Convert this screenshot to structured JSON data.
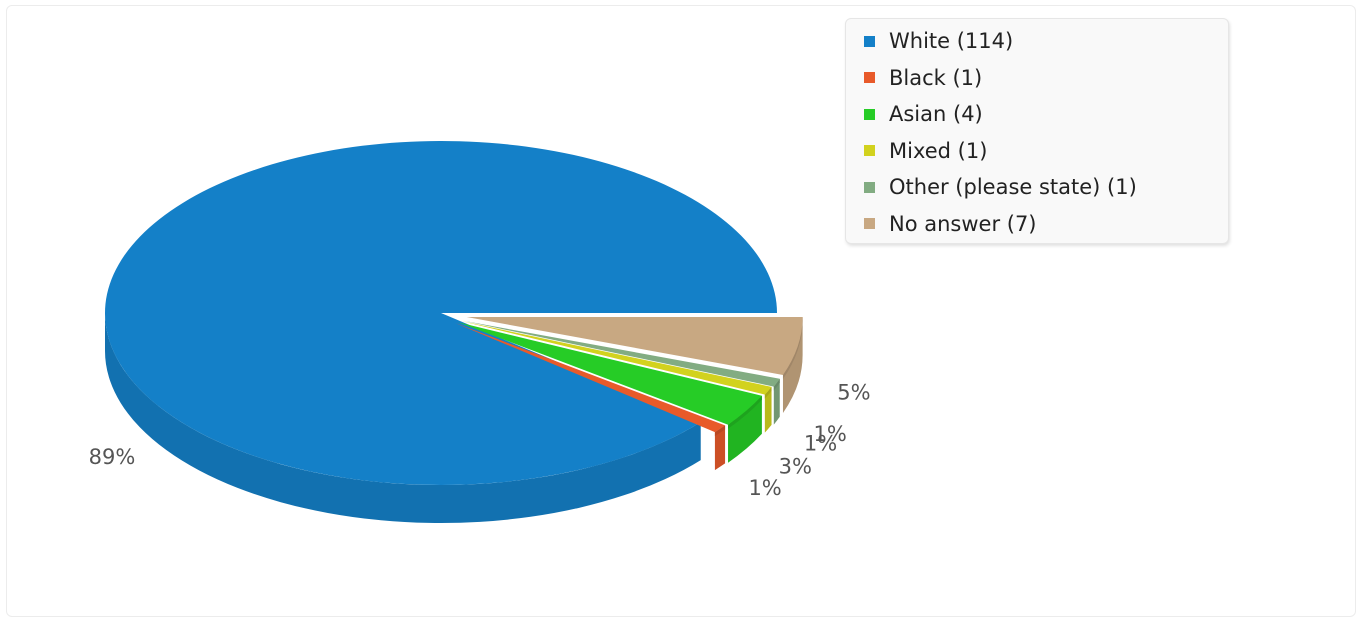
{
  "chart_data": {
    "type": "pie",
    "categories": [
      "White",
      "Black",
      "Asian",
      "Mixed",
      "Other (please state)",
      "No answer"
    ],
    "values": [
      114,
      1,
      4,
      1,
      1,
      7
    ],
    "percent_labels": [
      "89%",
      "1%",
      "3%",
      "1%",
      "1%",
      "5%"
    ],
    "legend_labels": [
      "White (114)",
      "Black (1)",
      "Asian (4)",
      "Mixed (1)",
      "Other (please state) (1)",
      "No answer (7)"
    ],
    "colors": [
      "#1480c8",
      "#e85a2a",
      "#26cc26",
      "#d2d21e",
      "#82ac82",
      "#c8a882"
    ],
    "exploded": true,
    "legend_position": "top-right"
  }
}
